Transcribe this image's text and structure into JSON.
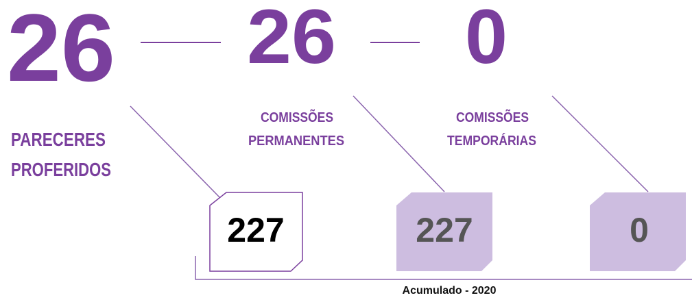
{
  "items": [
    {
      "number": "26",
      "label": [
        "PARECERES",
        "PROFERIDOS"
      ],
      "box_value": "227"
    },
    {
      "number": "26",
      "label": [
        "COMISSÕES",
        "PERMANENTES"
      ],
      "box_value": "227"
    },
    {
      "number": "0",
      "label": [
        "COMISSÕES",
        "TEMPORÁRIAS"
      ],
      "box_value": "0"
    }
  ],
  "footer": "Acumulado - 2020"
}
